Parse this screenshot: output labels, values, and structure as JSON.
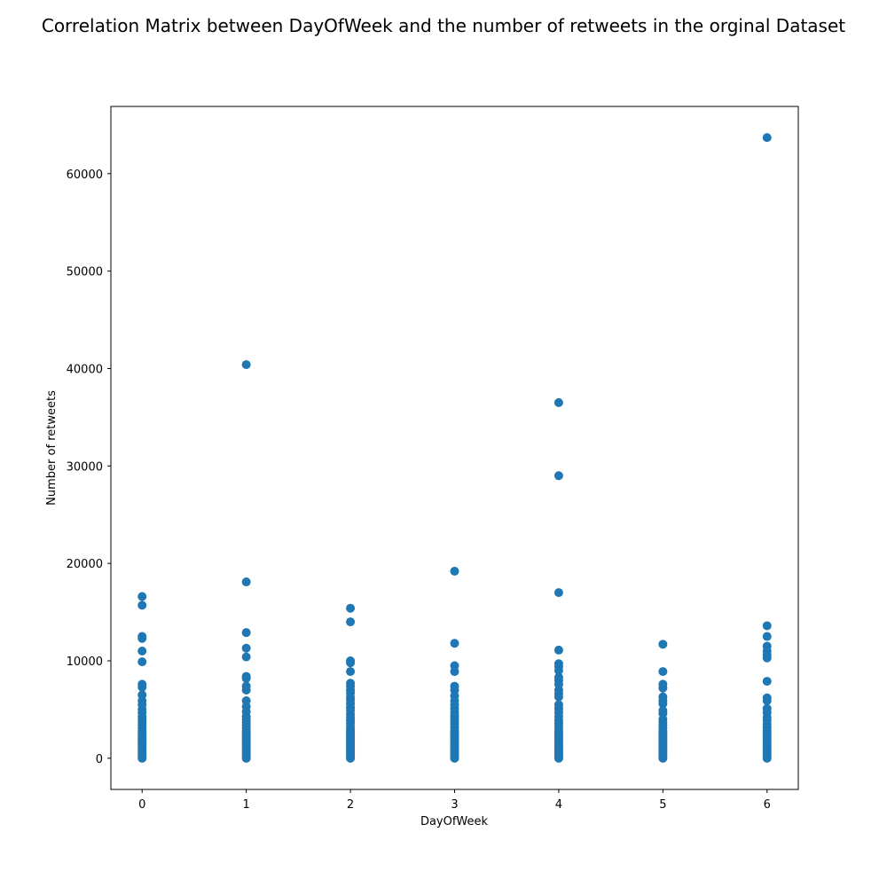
{
  "chart_data": {
    "type": "scatter",
    "title": "Correlation Matrix between DayOfWeek and the number of retweets in the orginal Dataset",
    "xlabel": "DayOfWeek",
    "ylabel": "Number of retweets",
    "xlim": [
      -0.3,
      6.3
    ],
    "ylim": [
      -3200,
      66900
    ],
    "xticks": [
      0,
      1,
      2,
      3,
      4,
      5,
      6
    ],
    "yticks": [
      0,
      10000,
      20000,
      30000,
      40000,
      50000,
      60000
    ],
    "grid": false,
    "marker_color": "#1f77b4",
    "points": [
      {
        "day": 0,
        "values": [
          16600,
          15700,
          12500,
          12300,
          11000,
          9900,
          7600,
          7300,
          6500,
          5900,
          5500,
          5000,
          4700,
          4300,
          4000,
          3700,
          3400,
          3100,
          2800,
          2600,
          2400,
          2200,
          2000,
          1800,
          1600,
          1400,
          1200,
          1000,
          800,
          600,
          400,
          200,
          0
        ]
      },
      {
        "day": 1,
        "values": [
          40400,
          18100,
          12900,
          11300,
          10400,
          8400,
          8200,
          7400,
          7000,
          5900,
          5300,
          4800,
          4300,
          4000,
          3700,
          3400,
          3100,
          2800,
          2600,
          2400,
          2200,
          2000,
          1800,
          1600,
          1400,
          1200,
          1000,
          800,
          600,
          400,
          200,
          0
        ]
      },
      {
        "day": 2,
        "values": [
          15400,
          14000,
          10000,
          9800,
          8900,
          7700,
          7400,
          7000,
          6700,
          6300,
          6000,
          5600,
          5200,
          4900,
          4500,
          4200,
          3900,
          3600,
          3300,
          3000,
          2800,
          2600,
          2400,
          2200,
          2000,
          1800,
          1600,
          1400,
          1200,
          1000,
          800,
          600,
          400,
          200,
          0
        ]
      },
      {
        "day": 3,
        "values": [
          19200,
          11800,
          9500,
          8900,
          7400,
          7000,
          6400,
          5900,
          5500,
          5100,
          4700,
          4400,
          4100,
          3800,
          3500,
          3200,
          2900,
          2700,
          2500,
          2300,
          2100,
          1900,
          1700,
          1500,
          1300,
          1100,
          900,
          700,
          500,
          300,
          100,
          0
        ]
      },
      {
        "day": 4,
        "values": [
          36500,
          29000,
          17000,
          11100,
          9700,
          9400,
          9000,
          8300,
          8000,
          7600,
          7000,
          6600,
          6300,
          5500,
          5100,
          4700,
          4300,
          3900,
          3600,
          3300,
          3000,
          2700,
          2500,
          2300,
          2100,
          1900,
          1700,
          1500,
          1300,
          1100,
          900,
          700,
          500,
          300,
          100,
          0
        ]
      },
      {
        "day": 5,
        "values": [
          11700,
          8900,
          7600,
          7200,
          6300,
          5900,
          5600,
          4900,
          4600,
          4000,
          3700,
          3400,
          3100,
          2800,
          2600,
          2400,
          2200,
          2000,
          1800,
          1600,
          1400,
          1200,
          1000,
          800,
          600,
          400,
          200,
          0
        ]
      },
      {
        "day": 6,
        "values": [
          63700,
          13600,
          12500,
          11500,
          11000,
          10600,
          10300,
          7900,
          6200,
          5900,
          5100,
          4700,
          4200,
          3900,
          3500,
          3200,
          2900,
          2700,
          2500,
          2300,
          2100,
          1900,
          1700,
          1500,
          1300,
          1100,
          900,
          700,
          500,
          300,
          100,
          0
        ]
      }
    ]
  }
}
